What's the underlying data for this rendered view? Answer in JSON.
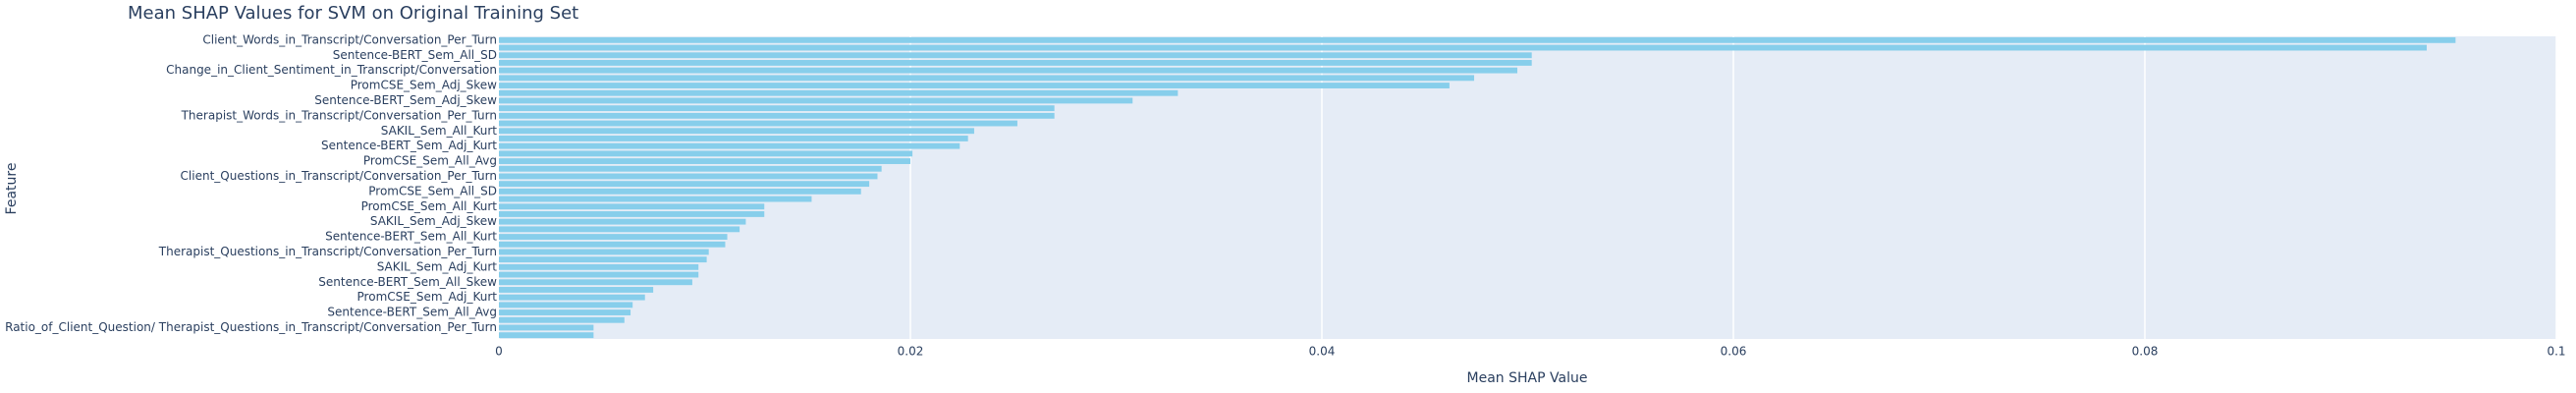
{
  "chart_data": {
    "type": "barh",
    "title": "Mean SHAP Values for SVM on Original Training Set",
    "xlabel": "Mean SHAP Value",
    "ylabel": "Feature",
    "categories": [
      "Client_Words_in_Transcript/Conversation_Per_Turn",
      null,
      "Sentence-BERT_Sem_All_SD",
      null,
      "Change_in_Client_Sentiment_in_Transcript/Conversation",
      null,
      "PromCSE_Sem_Adj_Skew",
      null,
      "Sentence-BERT_Sem_Adj_Skew",
      null,
      "Therapist_Words_in_Transcript/Conversation_Per_Turn",
      null,
      "SAKIL_Sem_All_Kurt",
      null,
      "Sentence-BERT_Sem_Adj_Kurt",
      null,
      "PromCSE_Sem_All_Avg",
      null,
      "Client_Questions_in_Transcript/Conversation_Per_Turn",
      null,
      "PromCSE_Sem_All_SD",
      null,
      "PromCSE_Sem_All_Kurt",
      null,
      "SAKIL_Sem_Adj_Skew",
      null,
      "Sentence-BERT_Sem_All_Kurt",
      null,
      "Therapist_Questions_in_Transcript/Conversation_Per_Turn",
      null,
      "SAKIL_Sem_Adj_Kurt",
      null,
      "Sentence-BERT_Sem_All_Skew",
      null,
      "PromCSE_Sem_Adj_Kurt",
      null,
      "Sentence-BERT_Sem_All_Avg",
      null,
      "Ratio_of_Client_Question/ Therapist_Questions_in_Transcript/Conversation_Per_Turn",
      null
    ],
    "values": [
      0.0951,
      0.0937,
      0.0502,
      0.0502,
      0.0495,
      0.0474,
      0.0462,
      0.033,
      0.0308,
      0.027,
      0.027,
      0.0252,
      0.0231,
      0.0228,
      0.0224,
      0.0201,
      0.02,
      0.0186,
      0.0184,
      0.018,
      0.0176,
      0.0152,
      0.0129,
      0.0129,
      0.012,
      0.0117,
      0.0111,
      0.011,
      0.0102,
      0.0101,
      0.0097,
      0.0097,
      0.0094,
      0.0075,
      0.0071,
      0.0065,
      0.0064,
      0.0061,
      0.0046,
      0.0046
    ],
    "color": "#87ceeb",
    "xlim": [
      0,
      0.1
    ],
    "xticks": [
      0,
      0.02,
      0.04,
      0.06,
      0.08,
      0.1
    ],
    "grid": true
  }
}
